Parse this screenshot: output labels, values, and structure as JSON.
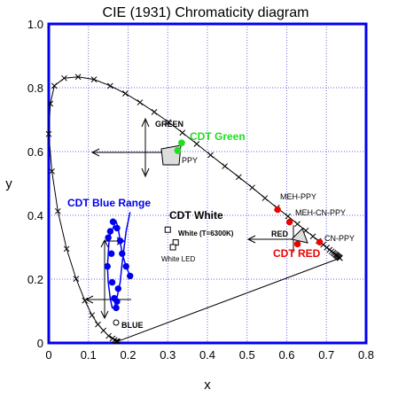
{
  "chart_data": {
    "type": "scatter",
    "title": "CIE (1931) Chromaticity diagram",
    "xlabel": "x",
    "ylabel": "y",
    "xlim": [
      0,
      0.8
    ],
    "ylim": [
      0,
      1.0
    ],
    "x_ticks": [
      "0",
      "0.1",
      "0.2",
      "0.3",
      "0.4",
      "0.5",
      "0.6",
      "0.7",
      "0.8"
    ],
    "y_ticks": [
      "0",
      "0.2",
      "0.4",
      "0.6",
      "0.8",
      "1.0"
    ],
    "grid": true,
    "legend": "none",
    "colors": {
      "frame": "#0000ee",
      "grid": "#6666dd",
      "blue": "#0000ee",
      "red": "#ee0000",
      "green": "#22dd22",
      "black": "#000000"
    },
    "series": [
      {
        "role": "spectral-locus",
        "x": [
          0.174,
          0.172,
          0.17,
          0.166,
          0.161,
          0.151,
          0.138,
          0.124,
          0.109,
          0.091,
          0.069,
          0.045,
          0.023,
          0.008,
          0.0,
          0.004,
          0.014,
          0.039,
          0.074,
          0.114,
          0.155,
          0.193,
          0.23,
          0.266,
          0.302,
          0.337,
          0.373,
          0.408,
          0.444,
          0.479,
          0.513,
          0.545,
          0.575,
          0.603,
          0.627,
          0.648,
          0.666,
          0.68,
          0.692,
          0.701,
          0.708,
          0.713,
          0.717,
          0.72,
          0.723,
          0.725,
          0.727,
          0.729,
          0.731,
          0.733,
          0.734
        ],
        "y": [
          0.005,
          0.005,
          0.005,
          0.009,
          0.014,
          0.022,
          0.039,
          0.058,
          0.087,
          0.133,
          0.201,
          0.295,
          0.413,
          0.538,
          0.655,
          0.75,
          0.806,
          0.83,
          0.834,
          0.826,
          0.806,
          0.782,
          0.754,
          0.724,
          0.692,
          0.659,
          0.624,
          0.589,
          0.554,
          0.52,
          0.487,
          0.454,
          0.424,
          0.397,
          0.373,
          0.352,
          0.334,
          0.32,
          0.308,
          0.299,
          0.292,
          0.287,
          0.283,
          0.28,
          0.277,
          0.275,
          0.273,
          0.271,
          0.269,
          0.267,
          0.266
        ]
      },
      {
        "role": "blue-range",
        "x": [
          0.205,
          0.195,
          0.185,
          0.18,
          0.175,
          0.17,
          0.165,
          0.162,
          0.158,
          0.155,
          0.152,
          0.15,
          0.148,
          0.15,
          0.155,
          0.16,
          0.165,
          0.17,
          0.175,
          0.18,
          0.185,
          0.195,
          0.205
        ],
        "y": [
          0.21,
          0.24,
          0.28,
          0.32,
          0.36,
          0.38,
          0.37,
          0.36,
          0.35,
          0.34,
          0.32,
          0.28,
          0.24,
          0.19,
          0.14,
          0.11,
          0.11,
          0.13,
          0.16,
          0.19,
          0.25,
          0.35,
          0.41
        ]
      },
      {
        "role": "blue-points",
        "x": [
          0.205,
          0.195,
          0.185,
          0.18,
          0.172,
          0.162,
          0.155,
          0.15,
          0.148,
          0.16,
          0.165,
          0.17,
          0.175,
          0.172,
          0.158
        ],
        "y": [
          0.21,
          0.24,
          0.28,
          0.32,
          0.36,
          0.38,
          0.35,
          0.33,
          0.24,
          0.19,
          0.14,
          0.11,
          0.17,
          0.13,
          0.28
        ]
      },
      {
        "role": "red-points",
        "x": [
          0.577,
          0.607,
          0.627,
          0.683
        ],
        "y": [
          0.418,
          0.379,
          0.31,
          0.316
        ]
      },
      {
        "role": "green-points",
        "x": [
          0.335,
          0.325
        ],
        "y": [
          0.627,
          0.603
        ]
      },
      {
        "role": "white-points",
        "x": [
          0.3,
          0.32,
          0.313
        ],
        "y": [
          0.355,
          0.315,
          0.3
        ]
      }
    ],
    "annotations": {
      "title_green": "CDT Green",
      "title_blue_range": "CDT Blue Range",
      "title_white": "CDT White",
      "title_red": "CDT RED",
      "green": "GREEN",
      "ppy": "PPY",
      "meh_ppy": "MEH-PPY",
      "meh_cn_ppy": "MEH-CN-PPY",
      "red": "RED",
      "cn_ppy": "CN-PPY",
      "white_t": "White (T=6300K)",
      "white_led": "White LED",
      "blue": "BLUE"
    }
  }
}
